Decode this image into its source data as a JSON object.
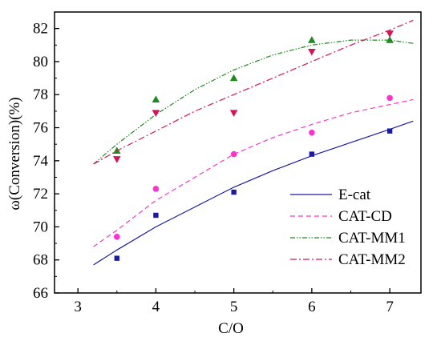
{
  "chart_data": {
    "type": "scatter",
    "xlabel": "C/O",
    "ylabel": "ω(Conversion)(%)",
    "xlim": [
      2.7,
      7.4
    ],
    "ylim": [
      66,
      83
    ],
    "xticks": [
      3,
      4,
      5,
      6,
      7
    ],
    "yticks": [
      66,
      68,
      70,
      72,
      74,
      76,
      78,
      80,
      82
    ],
    "x": [
      3.5,
      4,
      5,
      6,
      7
    ],
    "grid": false,
    "legend_position": "lower-right",
    "series": [
      {
        "name": "E-cat",
        "color": "#1a1aa6",
        "marker": "square",
        "line_style": "solid",
        "values": [
          68.1,
          70.7,
          72.1,
          74.4,
          75.8
        ],
        "fit": {
          "x": [
            3.2,
            3.5,
            4,
            4.5,
            5,
            5.5,
            6,
            6.5,
            7,
            7.3
          ],
          "y": [
            67.7,
            68.6,
            70.0,
            71.2,
            72.4,
            73.4,
            74.3,
            75.1,
            75.9,
            76.4
          ]
        }
      },
      {
        "name": "CAT-CD",
        "color": "#ff33cc",
        "marker": "circle",
        "line_style": "dashed",
        "values": [
          69.4,
          72.3,
          74.4,
          75.7,
          77.8
        ],
        "fit": {
          "x": [
            3.2,
            3.5,
            4,
            4.5,
            5,
            5.5,
            6,
            6.5,
            7,
            7.3
          ],
          "y": [
            68.8,
            69.8,
            71.6,
            73.0,
            74.4,
            75.4,
            76.2,
            76.9,
            77.4,
            77.7
          ]
        }
      },
      {
        "name": "CAT-MM1",
        "color": "#1f8a1f",
        "marker": "triangle-up",
        "line_style": "dash-dot-dot",
        "values": [
          74.6,
          77.7,
          79.0,
          81.3,
          81.3
        ],
        "fit": {
          "x": [
            3.2,
            3.5,
            4,
            4.5,
            5,
            5.5,
            6,
            6.5,
            7,
            7.3
          ],
          "y": [
            73.8,
            75.0,
            76.8,
            78.3,
            79.5,
            80.4,
            81.0,
            81.3,
            81.3,
            81.1
          ]
        }
      },
      {
        "name": "CAT-MM2",
        "color": "#d4145a",
        "marker": "triangle-down",
        "line_style": "dash-dot",
        "values": [
          74.1,
          76.9,
          76.9,
          80.6,
          81.7
        ],
        "fit": {
          "x": [
            3.2,
            3.5,
            4,
            4.5,
            5,
            5.5,
            6,
            6.5,
            7,
            7.3
          ],
          "y": [
            73.8,
            74.6,
            75.8,
            77.0,
            78.0,
            79.0,
            80.0,
            81.0,
            81.9,
            82.5
          ]
        }
      }
    ]
  }
}
